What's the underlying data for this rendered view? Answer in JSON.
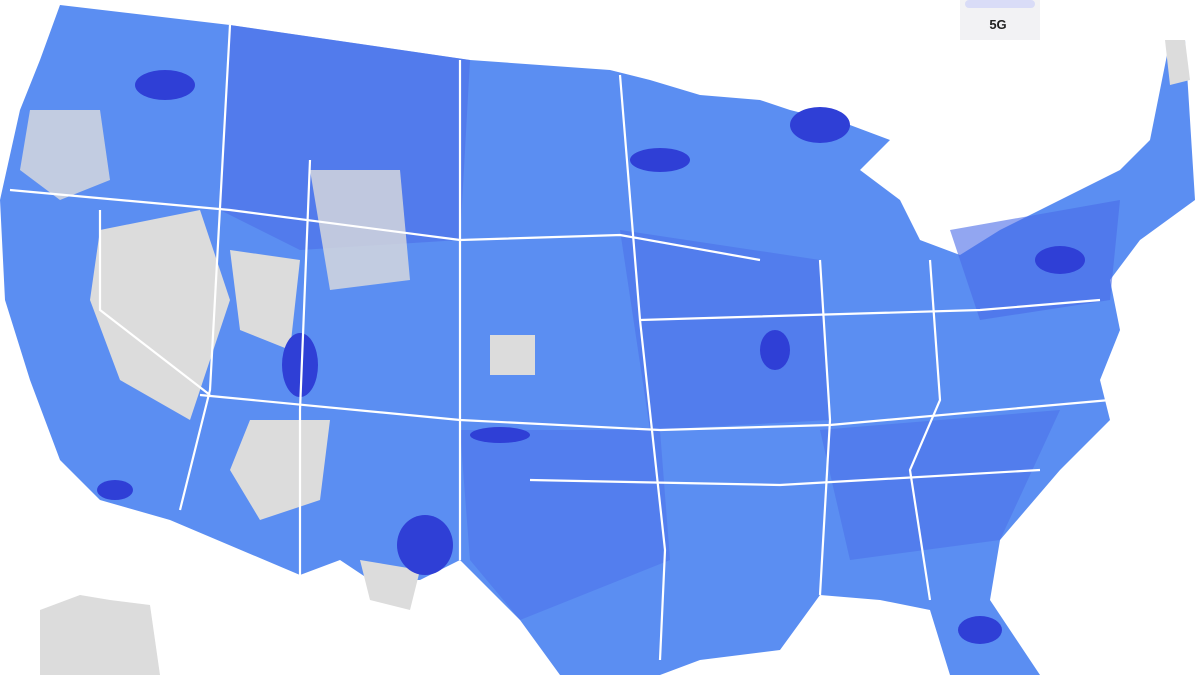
{
  "legend": {
    "label": "5G"
  }
}
